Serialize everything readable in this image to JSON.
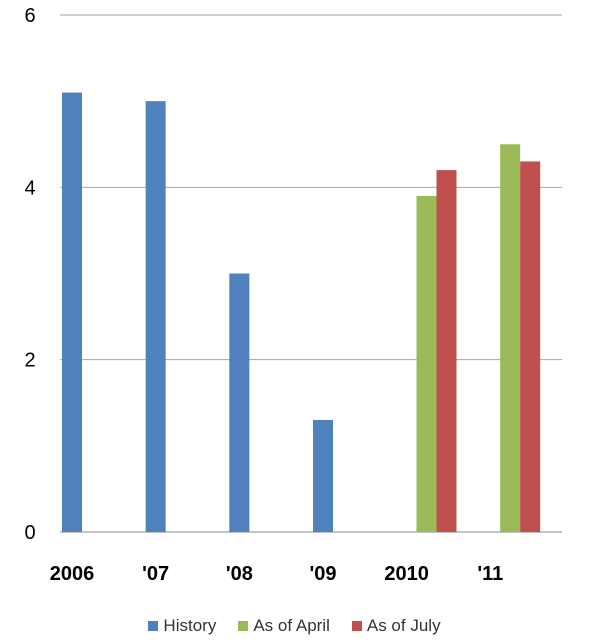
{
  "chart_data": {
    "type": "bar",
    "categories": [
      "2006",
      "'07",
      "'08",
      "'09",
      "2010",
      "'11"
    ],
    "series": [
      {
        "name": "History",
        "color": "#4f81bd",
        "values": [
          5.1,
          5.0,
          3.0,
          1.3,
          null,
          null
        ]
      },
      {
        "name": "As of April",
        "color": "#9bbb59",
        "values": [
          null,
          null,
          null,
          null,
          3.9,
          4.5
        ]
      },
      {
        "name": "As of July",
        "color": "#c0504d",
        "values": [
          null,
          null,
          null,
          null,
          4.2,
          4.3
        ]
      }
    ],
    "yticks": [
      "0",
      "2",
      "4",
      "6"
    ],
    "ylim": [
      0,
      6
    ],
    "grid": true,
    "legend_position": "bottom"
  }
}
